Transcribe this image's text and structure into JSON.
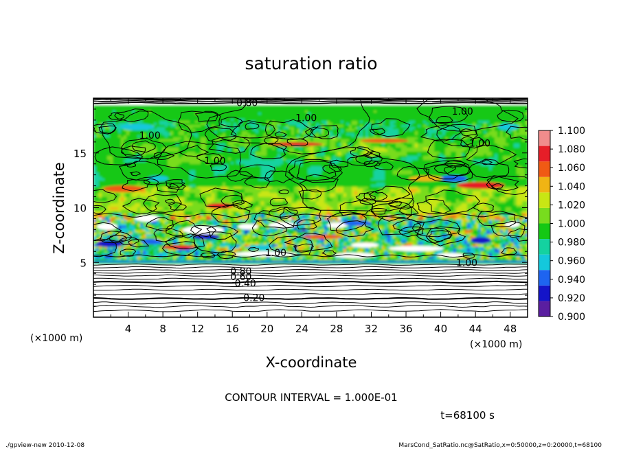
{
  "chart_data": {
    "type": "heatmap",
    "title": "saturation ratio",
    "xlabel": "X-coordinate",
    "ylabel": "Z-coordinate",
    "x_unit": "(×1000 m)",
    "z_unit": "(×1000 m)",
    "xlim": [
      0,
      50
    ],
    "zlim": [
      0,
      20
    ],
    "x_ticks": [
      4,
      8,
      12,
      16,
      20,
      24,
      28,
      32,
      36,
      40,
      44,
      48
    ],
    "z_ticks": [
      5,
      10,
      15
    ],
    "colorbar": {
      "levels": [
        0.9,
        0.92,
        0.94,
        0.96,
        0.98,
        1.0,
        1.02,
        1.04,
        1.06,
        1.08,
        1.1
      ],
      "labels": [
        "0.900",
        "0.920",
        "0.940",
        "0.960",
        "0.980",
        "1.000",
        "1.020",
        "1.040",
        "1.060",
        "1.080",
        "1.100"
      ],
      "colors": [
        "#5a1ea0",
        "#1414c8",
        "#1e64f0",
        "#14c8dc",
        "#14d2a0",
        "#14c814",
        "#78dc1e",
        "#c8e614",
        "#f0b414",
        "#f05a14",
        "#e61e28",
        "#f08c8c"
      ]
    },
    "contour_labels": [
      {
        "text": "0.20",
        "x": 18.5,
        "z": 1.8
      },
      {
        "text": "0.40",
        "x": 17.5,
        "z": 3.1
      },
      {
        "text": "0.60",
        "x": 17.0,
        "z": 3.7
      },
      {
        "text": "0.80",
        "x": 17.0,
        "z": 4.2
      },
      {
        "text": "1.00",
        "x": 21.0,
        "z": 5.9
      },
      {
        "text": "1.00",
        "x": 43.0,
        "z": 5.0
      },
      {
        "text": "1.00",
        "x": 6.5,
        "z": 16.6
      },
      {
        "text": "1.00",
        "x": 14.0,
        "z": 14.3
      },
      {
        "text": "1.00",
        "x": 24.5,
        "z": 18.2
      },
      {
        "text": "1.00",
        "x": 42.5,
        "z": 18.8
      },
      {
        "text": "1.00",
        "x": 44.5,
        "z": 15.9
      },
      {
        "text": "0.60",
        "x": 18.5,
        "z": 20.1
      },
      {
        "text": "0.80",
        "x": 17.7,
        "z": 19.6
      }
    ],
    "contour_interval_text": "CONTOUR INTERVAL = 1.000E-01",
    "time_text": "t=68100 s"
  },
  "footer": {
    "left": "./gpview-new  2010-12-08",
    "right": "MarsCond_SatRatio.nc@SatRatio,x=0:50000,z=0:20000,t=68100"
  }
}
